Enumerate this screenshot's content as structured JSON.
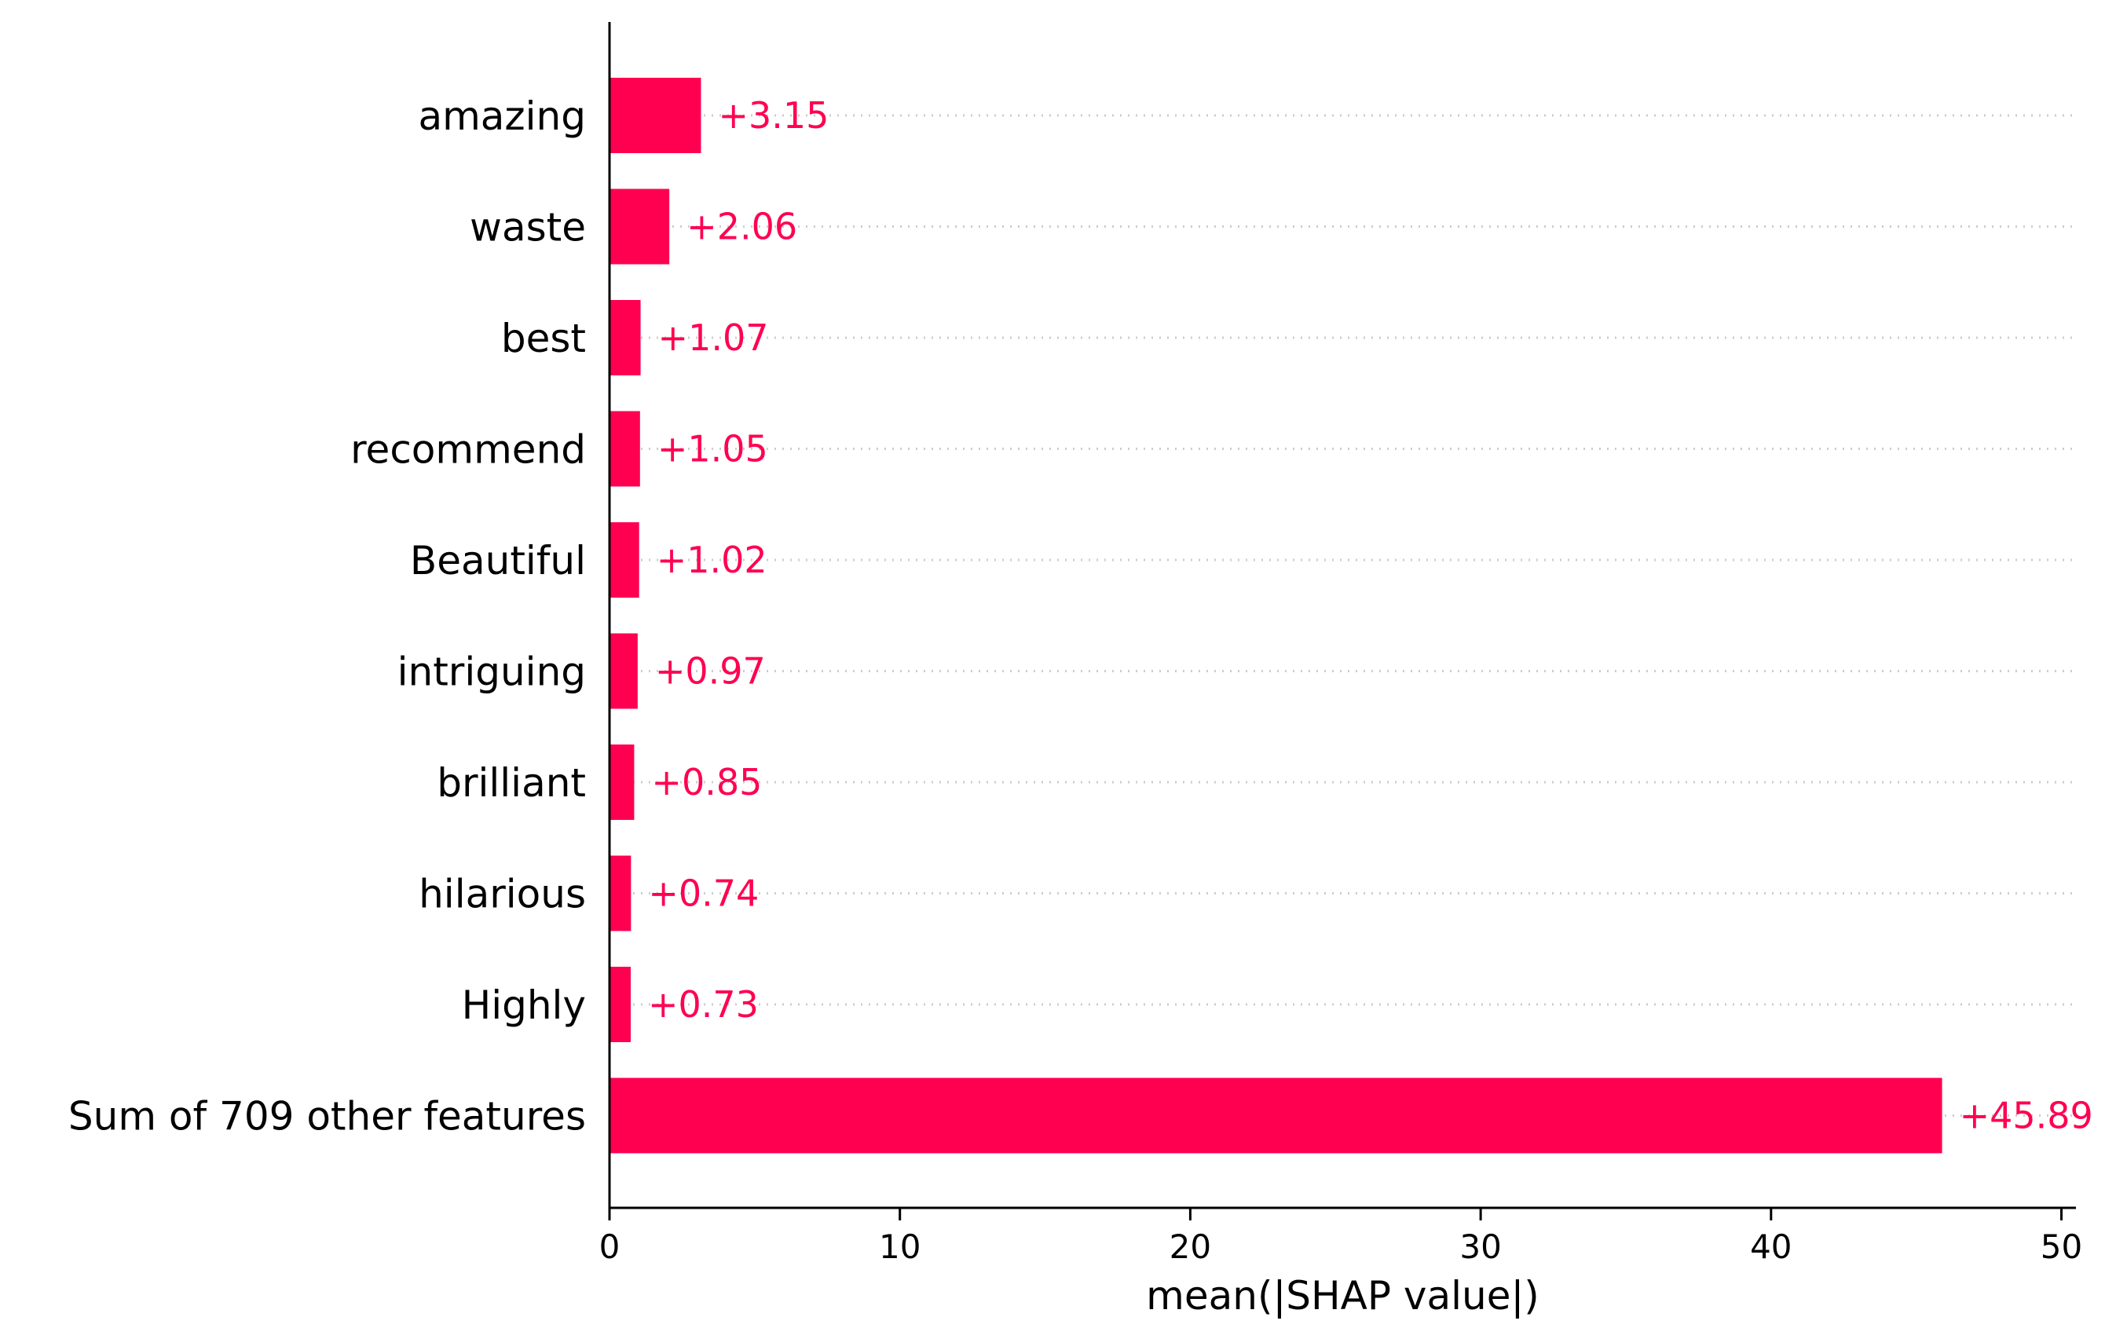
{
  "chart_data": {
    "type": "bar",
    "orientation": "horizontal",
    "categories": [
      "amazing",
      "waste",
      "best",
      "recommend",
      "Beautiful",
      "intriguing",
      "brilliant",
      "hilarious",
      "Highly",
      "Sum of 709 other features"
    ],
    "values": [
      3.15,
      2.06,
      1.07,
      1.05,
      1.02,
      0.97,
      0.85,
      0.74,
      0.73,
      45.89
    ],
    "value_labels": [
      "+3.15",
      "+2.06",
      "+1.07",
      "+1.05",
      "+1.02",
      "+0.97",
      "+0.85",
      "+0.74",
      "+0.73",
      "+45.89"
    ],
    "xlabel": "mean(|SHAP value|)",
    "ylabel": "",
    "title": "",
    "xlim": [
      0,
      50.5
    ],
    "xticks": [
      0,
      10,
      20,
      30,
      40,
      50
    ],
    "grid": "dotted horizontal guide lines per row",
    "legend": "none",
    "bar_color": "#ff0051",
    "label_color": "#ff0051",
    "gridline_color": "#cccccc"
  }
}
